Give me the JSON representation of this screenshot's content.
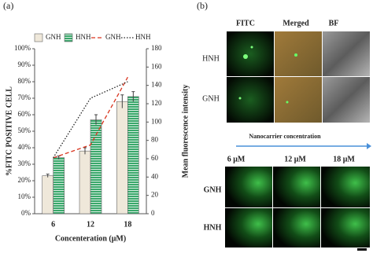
{
  "panel_labels": [
    "(a)",
    "(b)"
  ],
  "chart_data": {
    "type": "bar",
    "categories": [
      "6",
      "12",
      "18"
    ],
    "x_label": "Concenteration (μM)",
    "y_label": "%FITC POSITIVE CELL",
    "y2_label": "Mean fluorescence intensity",
    "ylim": [
      0,
      100
    ],
    "yticks": [
      {
        "value": 0,
        "label": "0%"
      },
      {
        "value": 10,
        "label": "10%"
      },
      {
        "value": 20,
        "label": "20%"
      },
      {
        "value": 30,
        "label": "30%"
      },
      {
        "value": 40,
        "label": "40%"
      },
      {
        "value": 50,
        "label": "50%"
      },
      {
        "value": 60,
        "label": "60%"
      },
      {
        "value": 70,
        "label": "70%"
      },
      {
        "value": 80,
        "label": "80%"
      },
      {
        "value": 90,
        "label": "90%"
      },
      {
        "value": 100,
        "label": "100%"
      }
    ],
    "y2lim": [
      0,
      180
    ],
    "y2ticks": [
      0,
      20,
      40,
      60,
      80,
      100,
      120,
      140,
      160,
      180
    ],
    "series": [
      {
        "name": "GNH",
        "type": "bar",
        "color": "#efe8da",
        "values": [
          23,
          38,
          68
        ],
        "errors": [
          1,
          2,
          4
        ]
      },
      {
        "name": "HNH",
        "type": "bar",
        "color": "#3aa86b",
        "hatch": "horizontal",
        "values": [
          34,
          57,
          71
        ],
        "errors": [
          1,
          3,
          3
        ]
      },
      {
        "name": "GNH",
        "type": "line",
        "axis": "y2",
        "color": "#d9351f",
        "dash": "dashed",
        "values": [
          61,
          75,
          149
        ]
      },
      {
        "name": "HNH",
        "type": "line",
        "axis": "y2",
        "color": "#222222",
        "dash": "dotted",
        "values": [
          61,
          126,
          144
        ]
      }
    ]
  },
  "microscopy": {
    "top": {
      "columns": [
        "FITC",
        "Merged",
        "BF"
      ],
      "rows": [
        "HNH",
        "GNH"
      ]
    },
    "bottom": {
      "caption": "Nanocarrier concentration",
      "columns": [
        "6 μM",
        "12 μM",
        "18 μM"
      ],
      "rows": [
        "GNH",
        "HNH"
      ]
    }
  }
}
